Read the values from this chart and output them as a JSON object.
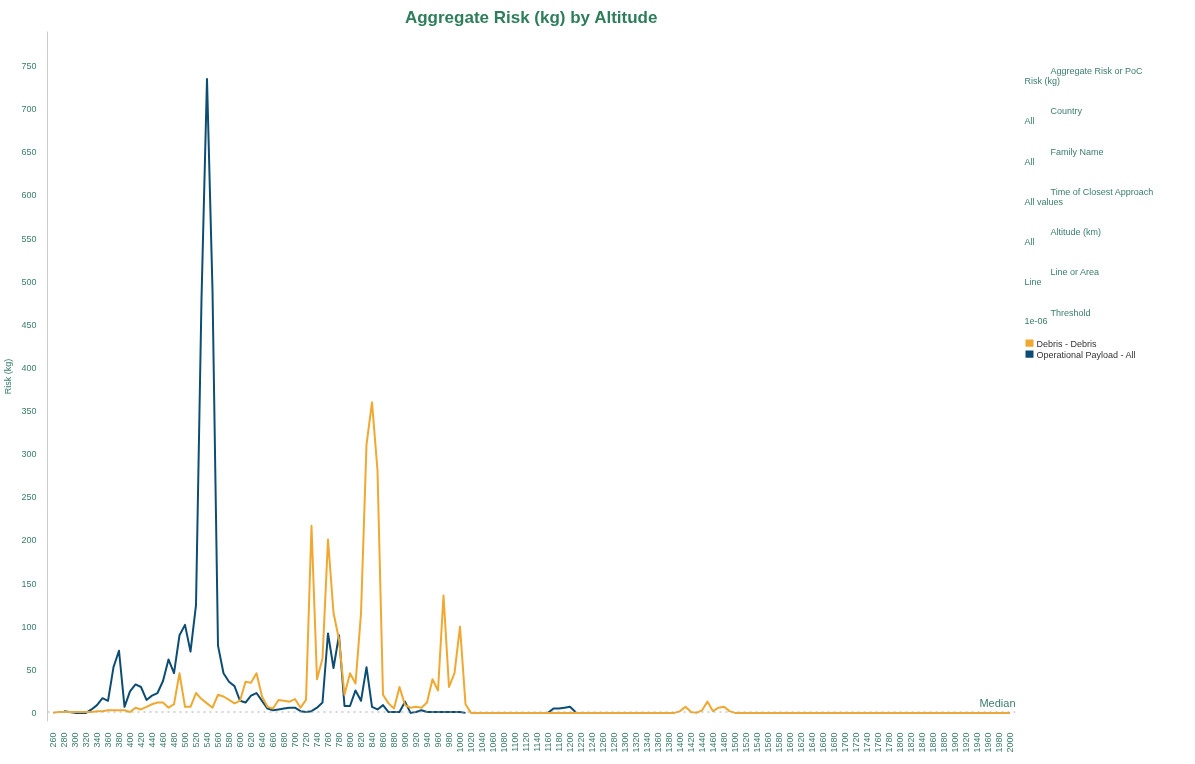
{
  "chart_data": {
    "type": "line",
    "title": "Aggregate Risk (kg) by Altitude",
    "ylabel": "Risk (kg)",
    "x": [
      260,
      270,
      280,
      290,
      300,
      310,
      320,
      330,
      340,
      350,
      360,
      370,
      380,
      390,
      400,
      410,
      420,
      430,
      440,
      450,
      460,
      470,
      480,
      490,
      500,
      510,
      520,
      530,
      540,
      550,
      560,
      570,
      580,
      590,
      600,
      610,
      620,
      630,
      640,
      650,
      660,
      670,
      680,
      690,
      700,
      710,
      720,
      730,
      740,
      750,
      760,
      770,
      780,
      790,
      800,
      810,
      820,
      830,
      840,
      850,
      860,
      870,
      880,
      890,
      900,
      910,
      920,
      930,
      940,
      950,
      960,
      970,
      980,
      990,
      1000,
      1010,
      1020,
      1030,
      1040,
      1050,
      1060,
      1070,
      1080,
      1090,
      1100,
      1110,
      1120,
      1130,
      1140,
      1150,
      1160,
      1170,
      1180,
      1190,
      1200,
      1210,
      1220,
      1230,
      1240,
      1250,
      1260,
      1270,
      1280,
      1290,
      1300,
      1310,
      1320,
      1330,
      1340,
      1350,
      1360,
      1370,
      1380,
      1390,
      1400,
      1410,
      1420,
      1430,
      1440,
      1450,
      1460,
      1470,
      1480,
      1490,
      1500,
      1510,
      1520,
      1530,
      1540,
      1550,
      1560,
      1570,
      1580,
      1590,
      1600,
      1610,
      1620,
      1630,
      1640,
      1650,
      1660,
      1670,
      1680,
      1690,
      1700,
      1710,
      1720,
      1730,
      1740,
      1750,
      1760,
      1770,
      1780,
      1790,
      1800,
      1810,
      1820,
      1830,
      1840,
      1850,
      1860,
      1870,
      1880,
      1890,
      1900,
      1910,
      1920,
      1930,
      1940,
      1950,
      1960,
      1970,
      1980,
      1990,
      2000
    ],
    "series": [
      {
        "name": "Debris - Debris",
        "color": "#f0a830",
        "values": [
          0,
          1,
          1,
          1,
          1,
          1,
          1,
          1,
          2,
          2,
          3,
          3,
          3,
          3,
          1,
          6,
          4,
          7,
          10,
          12,
          12,
          6,
          10,
          46,
          7,
          7,
          23,
          16,
          11,
          6,
          21,
          19,
          15,
          11,
          14,
          36,
          35,
          46,
          19,
          7,
          5,
          15,
          14,
          13,
          16,
          6,
          15,
          217,
          39,
          63,
          201,
          116,
          85,
          21,
          46,
          34,
          115,
          311,
          360,
          281,
          21,
          11,
          5,
          30,
          9,
          6,
          7,
          6,
          12,
          39,
          26,
          136,
          30,
          46,
          100,
          10,
          0,
          0,
          0,
          0,
          0,
          0,
          0,
          0,
          0,
          0,
          0,
          0,
          0,
          0,
          0,
          0,
          0,
          0,
          0,
          0,
          0,
          0,
          0,
          0,
          0,
          0,
          0,
          0,
          0,
          0,
          0,
          0,
          0,
          0,
          0,
          0,
          0,
          0,
          2,
          7,
          1,
          0,
          3,
          13,
          2,
          6,
          7,
          2,
          0,
          0,
          0,
          0,
          0,
          0,
          0,
          0,
          0,
          0,
          0,
          0,
          0,
          0,
          0,
          0,
          0,
          0,
          0,
          0,
          0,
          0,
          0,
          0,
          0,
          0,
          0,
          0,
          0,
          0,
          0,
          0,
          0,
          0,
          0,
          0,
          0,
          0,
          0,
          0,
          0,
          0,
          0,
          0,
          0,
          0,
          0,
          0,
          0,
          0,
          0
        ]
      },
      {
        "name": "Operational Payload - All",
        "color": "#0e4d73",
        "values": [
          null,
          null,
          2,
          1,
          0,
          0,
          0,
          4,
          9,
          17,
          14,
          53,
          72,
          7,
          25,
          33,
          30,
          15,
          20,
          23,
          37,
          62,
          46,
          90,
          102,
          71,
          125,
          480,
          735,
          490,
          78,
          46,
          36,
          31,
          14,
          12,
          20,
          23,
          14,
          5,
          3,
          4,
          5,
          6,
          6,
          2,
          1,
          2,
          6,
          12,
          92,
          52,
          90,
          8,
          8,
          26,
          14,
          53,
          7,
          4,
          9,
          1,
          1,
          1,
          13,
          0,
          1,
          3,
          1,
          1,
          1,
          1,
          1,
          1,
          1,
          0,
          null,
          null,
          null,
          null,
          null,
          null,
          null,
          null,
          null,
          null,
          null,
          null,
          null,
          null,
          0,
          5,
          5,
          6,
          7,
          1,
          null,
          null,
          null,
          null,
          null,
          null,
          null,
          null,
          null,
          null,
          null,
          null,
          null,
          null,
          null,
          null,
          null,
          null,
          null,
          null,
          null,
          null,
          null,
          null,
          null,
          null,
          null,
          null,
          null,
          null,
          null,
          null,
          null,
          null,
          null,
          null,
          null,
          null,
          null,
          null,
          null,
          null,
          null,
          null,
          null,
          null,
          null,
          null,
          null,
          null,
          null,
          null,
          null,
          null,
          null,
          null,
          null,
          null,
          null,
          null,
          null,
          null,
          null,
          null,
          null,
          null,
          null,
          null,
          null,
          null,
          null,
          null,
          null,
          null,
          null,
          null,
          null,
          null,
          null
        ]
      }
    ],
    "xlim": [
      250,
      2010
    ],
    "xticks": [
      260,
      280,
      300,
      320,
      340,
      360,
      380,
      400,
      420,
      440,
      460,
      480,
      500,
      520,
      540,
      560,
      580,
      600,
      620,
      640,
      660,
      680,
      700,
      720,
      740,
      760,
      780,
      800,
      820,
      840,
      860,
      880,
      900,
      920,
      940,
      960,
      980,
      1000,
      1020,
      1040,
      1060,
      1080,
      1100,
      1120,
      1140,
      1160,
      1180,
      1200,
      1220,
      1240,
      1260,
      1280,
      1300,
      1320,
      1340,
      1360,
      1380,
      1400,
      1420,
      1440,
      1460,
      1480,
      1500,
      1520,
      1540,
      1560,
      1580,
      1600,
      1620,
      1640,
      1660,
      1680,
      1700,
      1720,
      1740,
      1760,
      1780,
      1800,
      1820,
      1840,
      1860,
      1880,
      1900,
      1920,
      1940,
      1960,
      1980,
      2000
    ],
    "ylim": [
      -10,
      790
    ],
    "yticks": [
      0,
      50,
      100,
      150,
      200,
      250,
      300,
      350,
      400,
      450,
      500,
      550,
      600,
      650,
      700,
      750
    ],
    "ref_lines": [
      {
        "axis": "y",
        "value": 1,
        "label": "Median",
        "color": "#aaaaaa",
        "line_style": "dotted"
      }
    ],
    "annotations": [
      "Aggregate Risk or PoC",
      "Risk (kg)",
      "Country",
      "All",
      "Family Name",
      "All",
      "Time of Closest Approach",
      "All values",
      "Altitude (km)",
      "All",
      "Line or Area",
      "Line",
      "Threshold",
      "1e-06"
    ],
    "legend": "right",
    "grid": false,
    "marker": "none",
    "line_style": "solid"
  }
}
